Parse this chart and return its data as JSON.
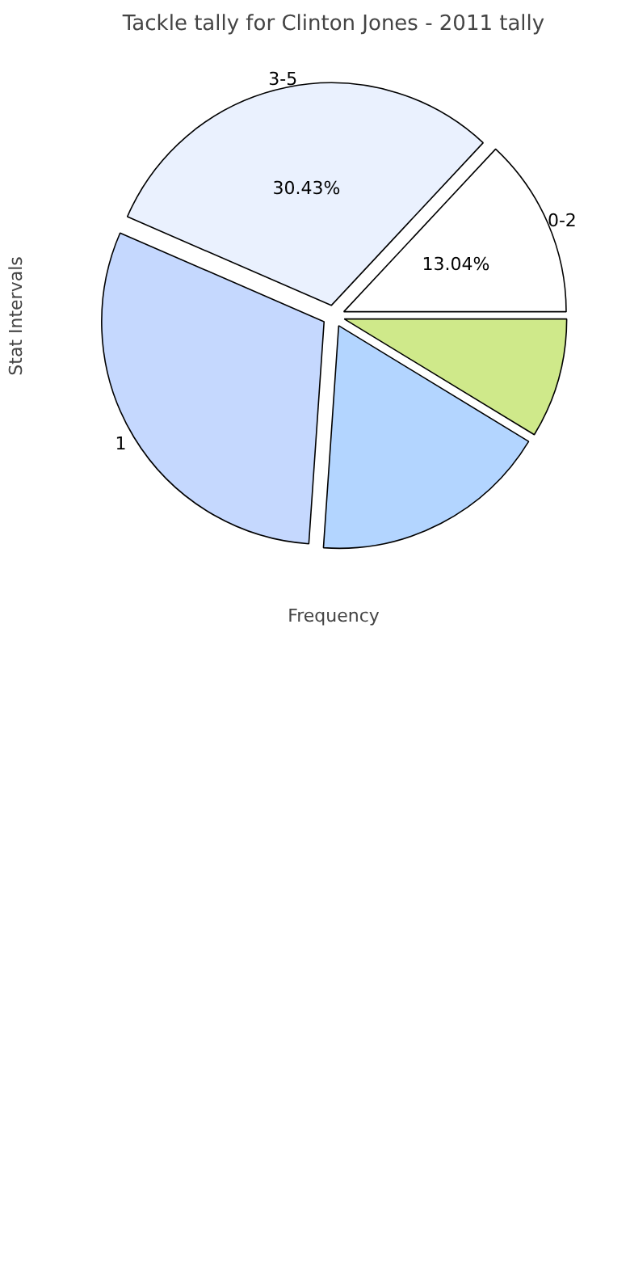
{
  "chart_data": {
    "type": "pie",
    "title": "Tackle tally for Clinton Jones - 2011 tally",
    "xlabel": "Frequency",
    "ylabel": "Stat Intervals",
    "categories": [
      "0-2",
      "3-5",
      "1",
      null,
      null
    ],
    "values": [
      13.04,
      30.43,
      30.43,
      17.39,
      8.7
    ],
    "value_labels": [
      "13.04%",
      "30.43%",
      null,
      null,
      null
    ],
    "colors": [
      "#ffffff",
      "#eaf1fe",
      "#c5d8fe",
      "#b3d5ff",
      "#cfe98a"
    ]
  }
}
